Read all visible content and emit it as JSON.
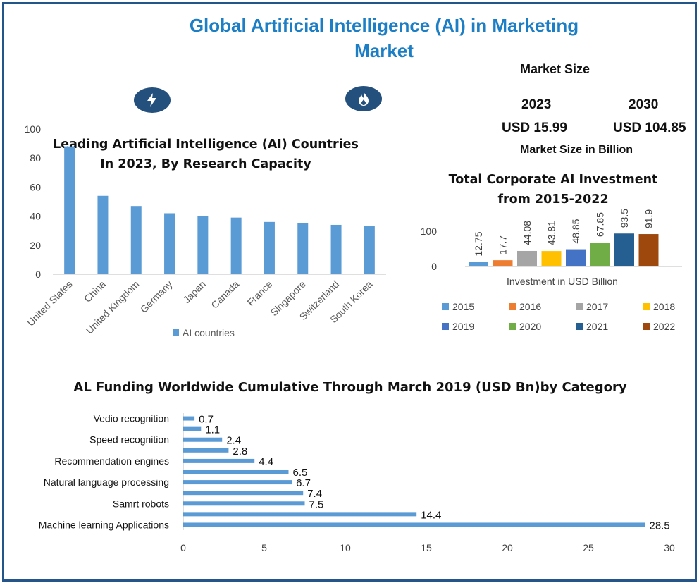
{
  "page": {
    "title_line1": "Global Artificial Intelligence (AI) in Marketing",
    "title_line2": "Market",
    "icons": [
      "lightning-icon",
      "flame-icon"
    ]
  },
  "market_size": {
    "heading": "Market Size",
    "year_a": "2023",
    "year_b": "2030",
    "value_a": "USD 15.99",
    "value_b": "USD 104.85",
    "unit": "Market Size in Billion"
  },
  "chart_data": [
    {
      "type": "bar",
      "title": "Leading Artificial Intelligence (AI) Countries",
      "subtitle": "In 2023, By Research Capacity",
      "categories": [
        "United States",
        "China",
        "United Kingdom",
        "Germany",
        "Japan",
        "Canada",
        "France",
        "Singapore",
        "Switzerland",
        "South Korea"
      ],
      "values": [
        88,
        54,
        47,
        42,
        40,
        39,
        36,
        35,
        34,
        33
      ],
      "ylim": [
        0,
        100
      ],
      "yticks": [
        "0",
        "20",
        "40",
        "60",
        "80",
        "100"
      ],
      "legend": "AI countries",
      "color": "#5b9bd5"
    },
    {
      "type": "bar",
      "title": "Total Corporate AI Investment",
      "subtitle": "from 2015-2022",
      "xlabel": "Investment in USD Billion",
      "ylim": [
        0,
        100
      ],
      "yticks": [
        "0",
        "100"
      ],
      "series": [
        {
          "name": "2015",
          "value": 12.75,
          "label": "12.75",
          "color": "#5b9bd5"
        },
        {
          "name": "2016",
          "value": 17.7,
          "label": "17.7",
          "color": "#ed7d31"
        },
        {
          "name": "2017",
          "value": 44.08,
          "label": "44.08",
          "color": "#a5a5a5"
        },
        {
          "name": "2018",
          "value": 43.81,
          "label": "43.81",
          "color": "#ffc000"
        },
        {
          "name": "2019",
          "value": 48.85,
          "label": "48.85",
          "color": "#4472c4"
        },
        {
          "name": "2020",
          "value": 67.85,
          "label": "67.85",
          "color": "#70ad47"
        },
        {
          "name": "2021",
          "value": 93.5,
          "label": "93.5",
          "color": "#255e91"
        },
        {
          "name": "2022",
          "value": 91.9,
          "label": "91.9",
          "color": "#9e480e"
        }
      ]
    },
    {
      "type": "bar",
      "orientation": "horizontal",
      "title": "AL Funding Worldwide Cumulative Through March 2019 (USD Bn)by Category",
      "xlim": [
        0,
        30
      ],
      "xticks": [
        "0",
        "5",
        "10",
        "15",
        "20",
        "25",
        "30"
      ],
      "labels": [
        "Vedio recognition",
        "",
        "Speed recognition",
        "",
        "Recommendation engines",
        "",
        "Natural language processing",
        "",
        "Samrt robots",
        "",
        "Machine learning Applications"
      ],
      "values": [
        0.7,
        1.1,
        2.4,
        2.8,
        4.4,
        6.5,
        6.7,
        7.4,
        7.5,
        14.4,
        28.5
      ],
      "value_labels": [
        "0.7",
        "1.1",
        "2.4",
        "2.8",
        "4.4",
        "6.5",
        "6.7",
        "7.4",
        "7.5",
        "14.4",
        "28.5"
      ],
      "color": "#5b9bd5"
    }
  ]
}
